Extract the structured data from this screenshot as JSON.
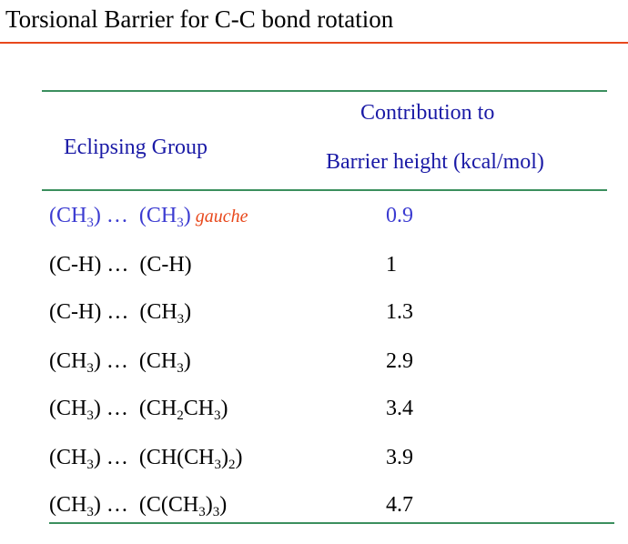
{
  "page": {
    "title": "Torsional Barrier for C-C bond rotation"
  },
  "table": {
    "header": {
      "group": "Eclipsing Group",
      "contribution_line1": "Contribution to",
      "contribution_line2": "Barrier height (kcal/mol)"
    },
    "rows": [
      {
        "group_a": [
          "(CH",
          "3",
          ")"
        ],
        "sep": "…",
        "group_b": [
          "(CH",
          "3",
          ")"
        ],
        "note": "gauche",
        "value": "0.9",
        "color": "#3b3bd1"
      },
      {
        "group_a": [
          "(C-H)"
        ],
        "sep": "…",
        "group_b": [
          "(C-H)"
        ],
        "note": "",
        "value": "1",
        "color": "#000000"
      },
      {
        "group_a": [
          "(C-H)"
        ],
        "sep": "…",
        "group_b": [
          "(CH",
          "3",
          ")"
        ],
        "note": "",
        "value": "1.3",
        "color": "#000000"
      },
      {
        "group_a": [
          "(CH",
          "3",
          ")"
        ],
        "sep": "…",
        "group_b": [
          "(CH",
          "3",
          ")"
        ],
        "note": "",
        "value": "2.9",
        "color": "#000000"
      },
      {
        "group_a": [
          "(CH",
          "3",
          ")"
        ],
        "sep": "…",
        "group_b": [
          "(CH",
          "2",
          "CH",
          "3",
          ")"
        ],
        "note": "",
        "value": "3.4",
        "color": "#000000"
      },
      {
        "group_a": [
          "(CH",
          "3",
          ")"
        ],
        "sep": "…",
        "group_b": [
          "(CH(CH",
          "3",
          ")",
          "2",
          ")"
        ],
        "note": "",
        "value": "3.9",
        "color": "#000000"
      },
      {
        "group_a": [
          "(CH",
          "3",
          ")"
        ],
        "sep": "…",
        "group_b": [
          "(C(CH",
          "3",
          ")",
          "3",
          ")"
        ],
        "note": "",
        "value": "4.7",
        "color": "#000000"
      }
    ]
  },
  "colors": {
    "title_rule": "#e8481c",
    "table_rule": "#3b8f5e",
    "header_text": "#1a1aa6",
    "highlight_row": "#3b3bd1",
    "gauche_note": "#e8481c"
  }
}
